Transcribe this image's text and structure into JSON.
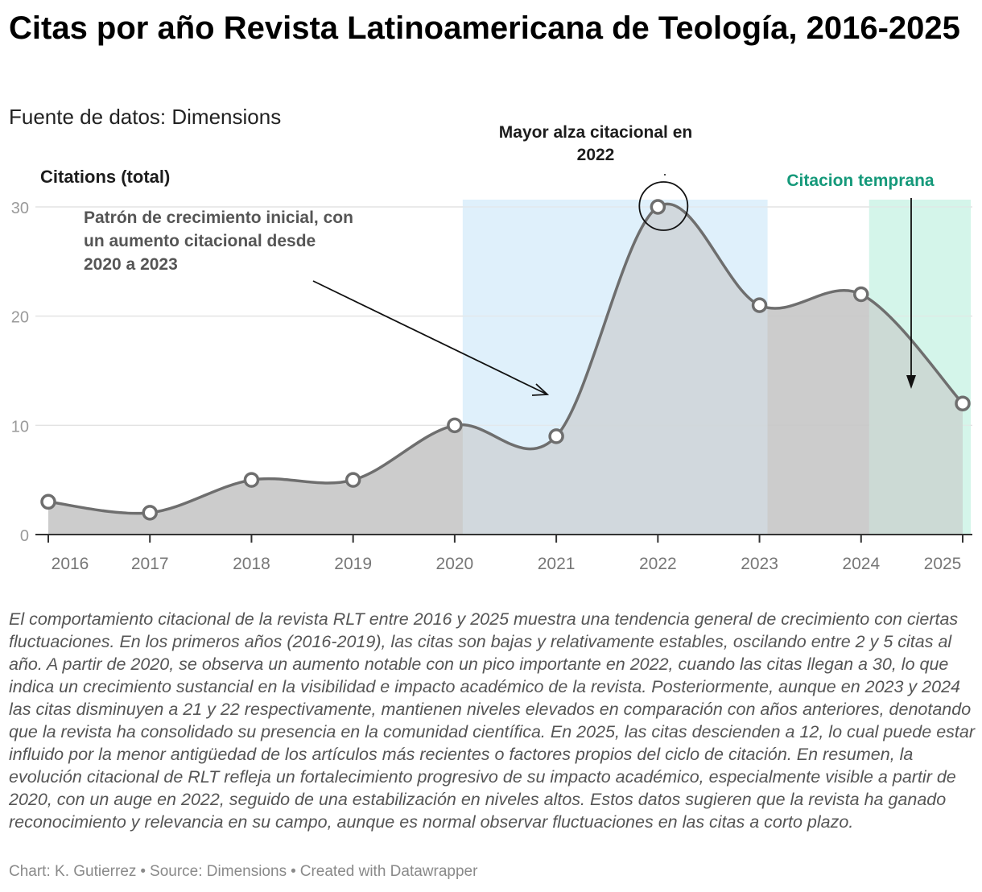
{
  "header": {
    "title": "Citas por año Revista Latinoamericana de Teología, 2016-2025",
    "subtitle": "Fuente de datos: Dimensions"
  },
  "chart_data": {
    "type": "area",
    "ylabel": "Citations (total)",
    "x": [
      "2016",
      "2017",
      "2018",
      "2019",
      "2020",
      "2021",
      "2022",
      "2023",
      "2024",
      "2025"
    ],
    "values": [
      3,
      2,
      5,
      5,
      10,
      9,
      30,
      21,
      22,
      12
    ],
    "yticks": [
      0,
      10,
      20,
      30
    ],
    "ylim": [
      0,
      30
    ],
    "grid": true,
    "highlight_ranges": [
      {
        "from": 2020,
        "to": 2023,
        "color": "#dff0fb"
      },
      {
        "from": 2024,
        "to": 2025,
        "color": "#d5f5ea"
      }
    ],
    "annotations": [
      {
        "text": "Patrón de crecimiento inicial, con un aumento citacional desde 2020 a 2023",
        "color": "#555555"
      },
      {
        "text": "Mayor alza citacional en 2022",
        "color": "#1d1d1d"
      },
      {
        "text": "Citacion temprana",
        "color": "#15997a"
      }
    ],
    "colors": {
      "area": "#c6c6c6",
      "line": "#6e6e6e",
      "marker_fill": "#ffffff"
    }
  },
  "description": "El comportamiento citacional de la revista RLT entre 2016 y 2025 muestra una tendencia general de crecimiento con ciertas fluctuaciones. En los primeros años (2016-2019), las citas son bajas y relativamente estables, oscilando entre 2 y 5 citas al año. A partir de 2020, se observa un aumento notable con un pico importante en 2022, cuando las citas llegan a 30, lo que indica un crecimiento sustancial en la visibilidad e impacto académico de la revista. Posteriormente, aunque en 2023 y 2024 las citas disminuyen a 21 y 22 respectivamente, mantienen niveles elevados en comparación con años anteriores, denotando que la revista ha consolidado su presencia en la comunidad científica. En 2025, las citas descienden a 12, lo cual puede estar influido por la menor antigüedad de los artículos más recientes o factores propios del ciclo de citación. En resumen, la evolución citacional de RLT refleja un fortalecimiento progresivo de su impacto académico, especialmente visible a partir de 2020, con un auge en 2022, seguido de una estabilización en niveles altos. Estos datos sugieren que la revista ha ganado reconocimiento y relevancia en su campo, aunque es normal observar fluctuaciones en las citas a corto plazo.",
  "footer": {
    "chart_by": "Chart: K. Gutierrez",
    "source": "Source: Dimensions",
    "tool": "Created with Datawrapper",
    "separator": "•"
  }
}
